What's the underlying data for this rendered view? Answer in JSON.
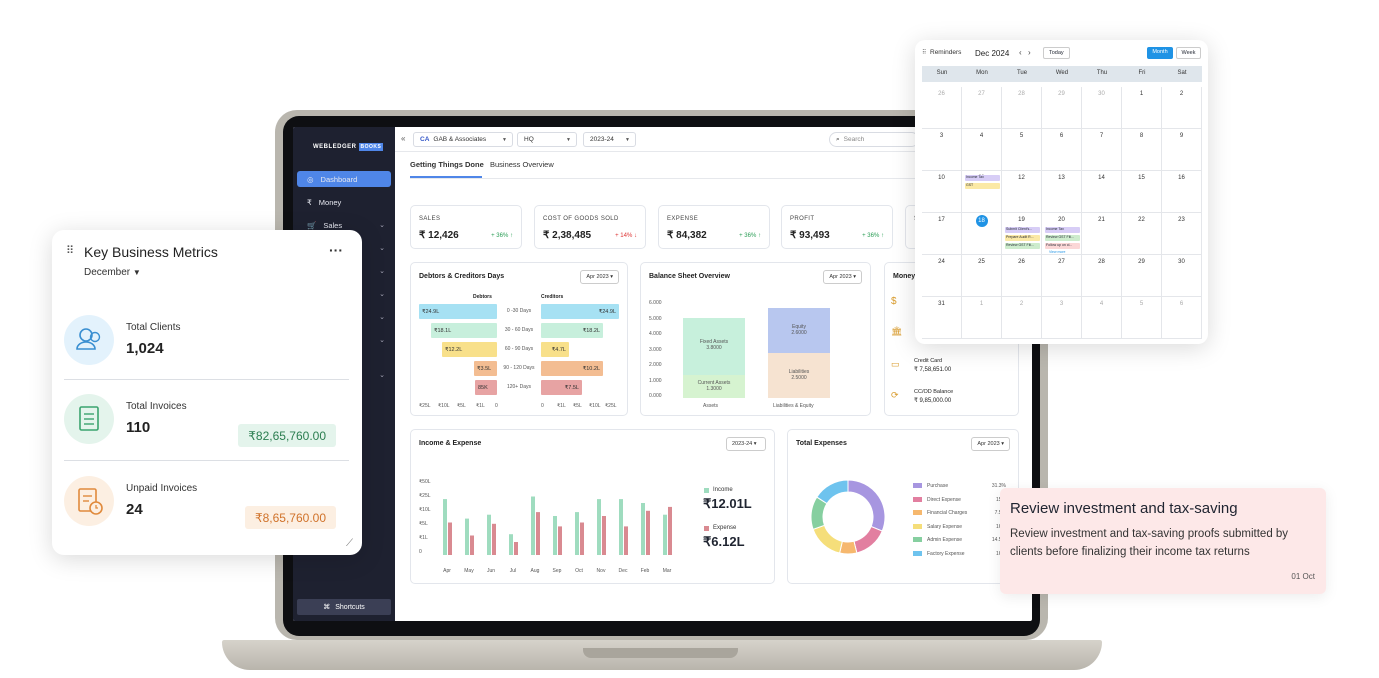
{
  "brand": {
    "logo": "WEBLEDGER",
    "logo_badge": "BOOKS"
  },
  "sidebar": {
    "items": [
      {
        "label": "Dashboard"
      },
      {
        "label": "Money"
      },
      {
        "label": "Sales"
      }
    ],
    "shortcuts": "Shortcuts"
  },
  "topbar": {
    "company": "GAB & Associates",
    "branch": "HQ",
    "year": "2023-24",
    "search_placeholder": "Search"
  },
  "tabs": [
    {
      "label": "Getting Things Done"
    },
    {
      "label": "Business Overview"
    }
  ],
  "kpis": [
    {
      "label": "SALES",
      "value": "₹ 12,426",
      "change": "+ 36% ↑"
    },
    {
      "label": "COST OF GOODS SOLD",
      "value": "₹ 2,38,485",
      "change": "+ 14% ↓"
    },
    {
      "label": "EXPENSE",
      "value": "₹ 84,382",
      "change": "+ 36% ↑"
    },
    {
      "label": "PROFIT",
      "value": "₹ 93,493",
      "change": "+ 36% ↑"
    },
    {
      "label": "S"
    }
  ],
  "debtors": {
    "title": "Debtors & Creditors Days",
    "period": "Apr 2023",
    "left_head": "Debtors",
    "right_head": "Creditors",
    "rows": [
      {
        "range": "0 -30 Days",
        "debtor": "₹24.9L",
        "creditor": "₹24.9L",
        "dw": 1.0,
        "cw": 1.0
      },
      {
        "range": "30 - 60 Days",
        "debtor": "₹18.1L",
        "creditor": "₹18.2L",
        "dw": 0.85,
        "cw": 0.8
      },
      {
        "range": "60 - 90 Days",
        "debtor": "₹12.2L",
        "creditor": "₹4.7L",
        "dw": 0.7,
        "cw": 0.36
      },
      {
        "range": "90 - 120 Days",
        "debtor": "₹3.5L",
        "creditor": "₹10.2L",
        "dw": 0.3,
        "cw": 0.8
      },
      {
        "range": "120+ Days",
        "debtor": "85K",
        "creditor": "₹7.5L",
        "dw": 0.28,
        "cw": 0.52
      }
    ],
    "left_axis": [
      "₹25L",
      "₹10L",
      "₹5L",
      "₹1L",
      "0"
    ],
    "right_axis": [
      "0",
      "₹1L",
      "₹5L",
      "₹10L",
      "₹25L"
    ]
  },
  "balance": {
    "title": "Balance Sheet Overview",
    "period": "Apr 2023",
    "yticks": [
      "6.000",
      "5.000",
      "4.000",
      "3.000",
      "2.000",
      "1.000",
      "0.000"
    ],
    "fixed_assets_label": "Fixed Assets",
    "fixed_assets": "3.8000",
    "current_assets_label": "Current Assets",
    "current_assets": "1.3000",
    "equity_label": "Equity",
    "equity": "2.6000",
    "liabilities_label": "Liabilities",
    "liabilities": "2.5000",
    "xlabels": [
      "Assets",
      "Liabilities & Equity"
    ]
  },
  "money": {
    "title": "Money",
    "items": [
      {
        "label": "Credit Card",
        "value": "₹ 7,58,651.00"
      },
      {
        "label": "CC/OD Balance",
        "value": "₹ 9,85,000.00"
      }
    ]
  },
  "income": {
    "title": "Income & Expense",
    "period": "2023-24",
    "income_label": "Income",
    "income_value": "₹12.01L",
    "expense_label": "Expense",
    "expense_value": "₹6.12L",
    "yticks": [
      "₹50L",
      "₹25L",
      "₹10L",
      "₹5L",
      "₹1L",
      "0"
    ]
  },
  "chart_data": {
    "type": "bar",
    "categories": [
      "Apr",
      "May",
      "Jun",
      "Jul",
      "Aug",
      "Sep",
      "Oct",
      "Nov",
      "Dec",
      "Feb",
      "Mar"
    ],
    "series": [
      {
        "name": "Income",
        "values": [
          0.86,
          0.56,
          0.62,
          0.32,
          0.9,
          0.6,
          0.66,
          0.86,
          0.86,
          0.8,
          0.62
        ]
      },
      {
        "name": "Expense",
        "values": [
          0.5,
          0.3,
          0.48,
          0.2,
          0.66,
          0.44,
          0.5,
          0.6,
          0.44,
          0.68,
          0.74
        ]
      }
    ]
  },
  "total_expenses": {
    "title": "Total Expenses",
    "period": "Apr 2023",
    "items": [
      {
        "label": "Purchase",
        "pct": "31.3%",
        "value": 31.3,
        "color": "#a796e0"
      },
      {
        "label": "Direct Expense",
        "pct": "15%",
        "value": 15,
        "color": "#e27fa0"
      },
      {
        "label": "Financial Charges",
        "pct": "7.5%",
        "value": 7.5,
        "color": "#f6b86e"
      },
      {
        "label": "Salary Expense",
        "pct": "16%",
        "value": 16,
        "color": "#f5de7a"
      },
      {
        "label": "Admin Expense",
        "pct": "14.5%",
        "value": 14.5,
        "color": "#86cfa0"
      },
      {
        "label": "Factory Expense",
        "pct": "16%",
        "value": 16,
        "color": "#6ec3ee"
      }
    ]
  },
  "key_metrics": {
    "title": "Key Business Metrics",
    "month": "December",
    "rows": [
      {
        "label": "Total Clients",
        "value": "1,024"
      },
      {
        "label": "Total Invoices",
        "value": "110",
        "badge": "₹82,65,760.00"
      },
      {
        "label": "Unpaid Invoices",
        "value": "24",
        "badge": "₹8,65,760.00"
      }
    ]
  },
  "calendar": {
    "title": "Reminders",
    "month": "Dec",
    "year": "2024",
    "today": "Today",
    "view_month": "Month",
    "view_week": "Week",
    "dow": [
      "Sun",
      "Mon",
      "Tue",
      "Wed",
      "Thu",
      "Fri",
      "Sat"
    ],
    "weeks": [
      [
        "26",
        "27",
        "28",
        "29",
        "30",
        "1",
        "2"
      ],
      [
        "3",
        "4",
        "5",
        "6",
        "7",
        "8",
        "9"
      ],
      [
        "10",
        "11",
        "12",
        "13",
        "14",
        "15",
        "16"
      ],
      [
        "17",
        "18",
        "19",
        "20",
        "21",
        "22",
        "23"
      ],
      [
        "24",
        "25",
        "26",
        "27",
        "28",
        "29",
        "30"
      ],
      [
        "31",
        "1",
        "2",
        "3",
        "4",
        "5",
        "6"
      ]
    ],
    "events": {
      "e1": "Income Tax",
      "e2": "GST",
      "e3": "Submit Client's...",
      "e4": "Prepare Audit R...",
      "e5": "Review GST Fili...",
      "e6": "Income Tax",
      "e7": "Review GST Fili...",
      "e8": "Follow up on cl...",
      "more": "View more"
    }
  },
  "reminder": {
    "title": "Review investment and tax-saving",
    "body": "Review investment and tax-saving proofs submitted by clients before finalizing their income tax returns",
    "date": "01 Oct"
  }
}
